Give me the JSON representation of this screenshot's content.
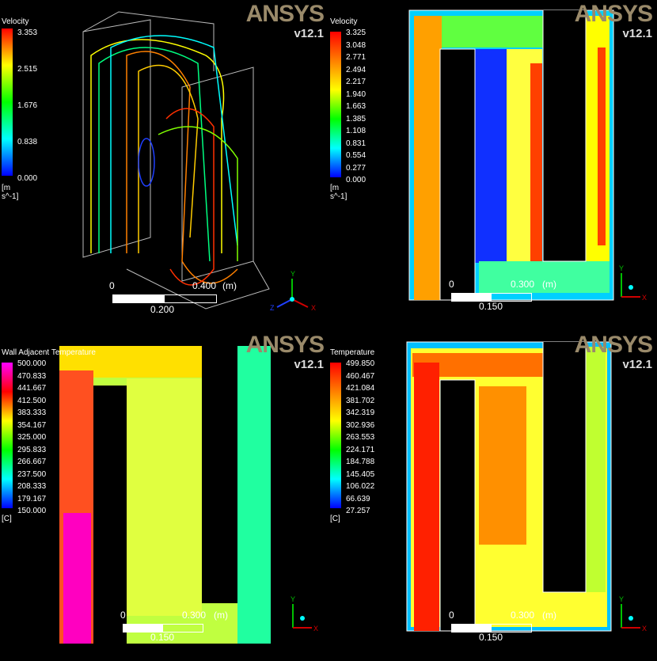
{
  "panels": [
    {
      "brand": "ANSYS",
      "version": "v12.1",
      "legend": {
        "title": "Velocity",
        "unit": "[m s^-1]",
        "ticks": [
          "3.353",
          "2.515",
          "1.676",
          "0.838",
          "0.000"
        ]
      },
      "scale": {
        "zero": "0",
        "mid": "0.200",
        "end": "0.400",
        "unit": "(m)"
      },
      "axes": {
        "x": "X",
        "y": "Y",
        "z": "Z"
      }
    },
    {
      "brand": "ANSYS",
      "version": "v12.1",
      "legend": {
        "title": "Velocity",
        "unit": "[m s^-1]",
        "ticks": [
          "3.325",
          "3.048",
          "2.771",
          "2.494",
          "2.217",
          "1.940",
          "1.663",
          "1.385",
          "1.108",
          "0.831",
          "0.554",
          "0.277",
          "0.000"
        ]
      },
      "scale": {
        "zero": "0",
        "mid": "0.150",
        "end": "0.300",
        "unit": "(m)"
      },
      "axes": {
        "x": "X",
        "y": "Y"
      }
    },
    {
      "brand": "ANSYS",
      "version": "v12.1",
      "legend": {
        "title": "Wall Adjacent Temperature",
        "unit": "[C]",
        "ticks": [
          "500.000",
          "470.833",
          "441.667",
          "412.500",
          "383.333",
          "354.167",
          "325.000",
          "295.833",
          "266.667",
          "237.500",
          "208.333",
          "179.167",
          "150.000"
        ]
      },
      "scale": {
        "zero": "0",
        "mid": "0.150",
        "end": "0.300",
        "unit": "(m)"
      },
      "axes": {
        "x": "X",
        "y": "Y"
      }
    },
    {
      "brand": "ANSYS",
      "version": "v12.1",
      "legend": {
        "title": "Temperature",
        "unit": "[C]",
        "ticks": [
          "499.850",
          "460.467",
          "421.084",
          "381.702",
          "342.319",
          "302.936",
          "263.553",
          "224.171",
          "184.788",
          "145.405",
          "106.022",
          "66.639",
          "27.257"
        ]
      },
      "scale": {
        "zero": "0",
        "mid": "0.150",
        "end": "0.300",
        "unit": "(m)"
      },
      "axes": {
        "x": "X",
        "y": "Y"
      }
    }
  ],
  "colors": {
    "rainbow": [
      "#ff0000",
      "#ff8000",
      "#ffff00",
      "#00ff00",
      "#00ffff",
      "#0000ff"
    ],
    "wall_temp": [
      "#ff00ff",
      "#ff0000",
      "#ffff00",
      "#00ff00",
      "#00ffff",
      "#0000ff"
    ]
  }
}
